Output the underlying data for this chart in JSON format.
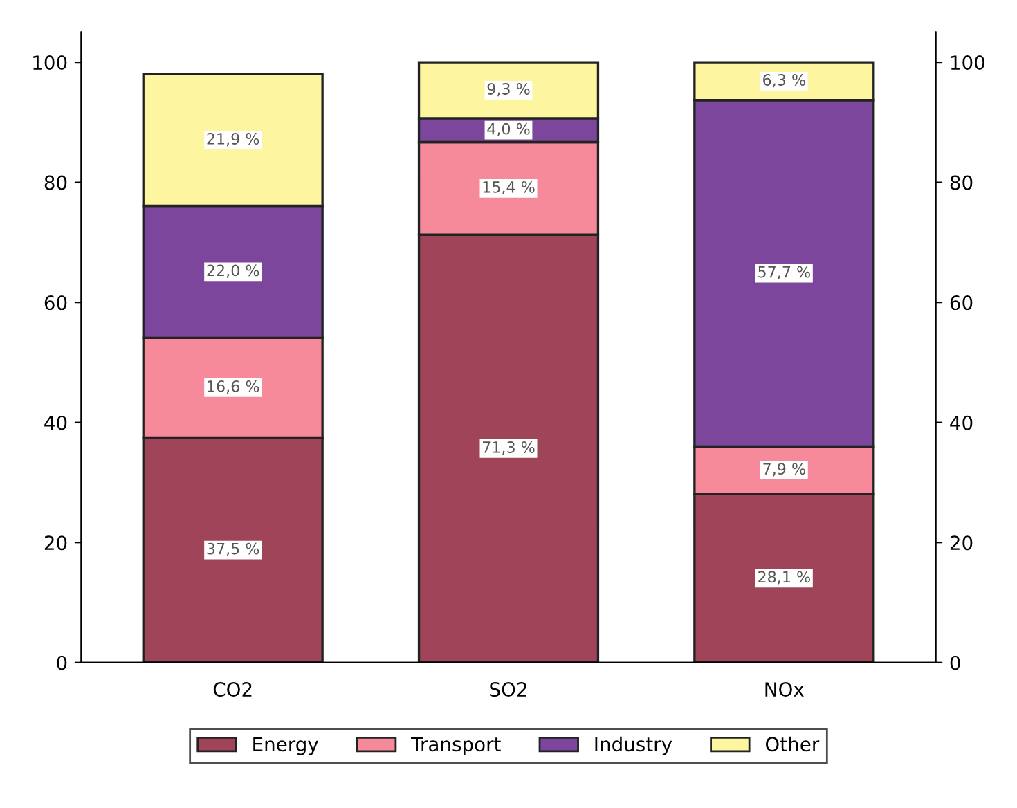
{
  "chart_data": {
    "type": "bar",
    "stacked": true,
    "categories": [
      "CO2",
      "SO2",
      "NOx"
    ],
    "series": [
      {
        "name": "Energy",
        "color": "#a0445a",
        "values": [
          37.5,
          71.3,
          28.1
        ],
        "value_labels": [
          "37,5 %",
          "71,3 %",
          "28,1 %"
        ]
      },
      {
        "name": "Transport",
        "color": "#f78a9a",
        "values": [
          16.6,
          15.4,
          7.9
        ],
        "value_labels": [
          "16,6 %",
          "15,4 %",
          "7,9 %"
        ]
      },
      {
        "name": "Industry",
        "color": "#7b469c",
        "values": [
          22.0,
          4.0,
          57.7
        ],
        "value_labels": [
          "22,0 %",
          "4,0 %",
          "57,7 %"
        ]
      },
      {
        "name": "Other",
        "color": "#fdf5a0",
        "values": [
          21.9,
          9.3,
          6.3
        ],
        "value_labels": [
          "21,9 %",
          "9,3 %",
          "6,3 %"
        ]
      }
    ],
    "ylim": [
      0,
      105
    ],
    "yticks": [
      0,
      20,
      40,
      60,
      80,
      100
    ],
    "y2lim": [
      0,
      105
    ],
    "y2ticks": [
      0,
      20,
      40,
      60,
      80,
      100
    ],
    "grid": false,
    "legend": "bottom"
  }
}
